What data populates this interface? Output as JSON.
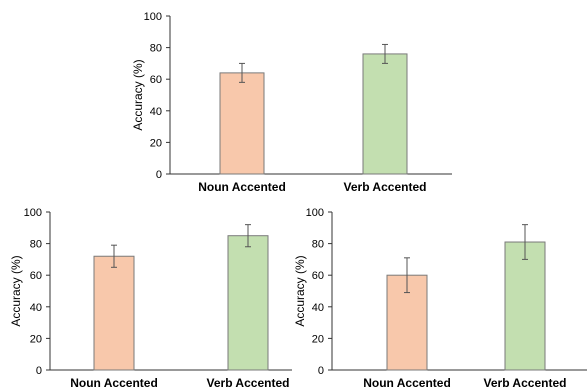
{
  "chart_data": [
    {
      "type": "bar",
      "categories": [
        "Noun Accented",
        "Verb Accented"
      ],
      "values": [
        64,
        76
      ],
      "errors": [
        6,
        6
      ],
      "ylabel": "Accuracy (%)",
      "ylim": [
        0,
        100
      ],
      "yticks": [
        "0",
        "20",
        "40",
        "60",
        "80",
        "100"
      ],
      "colors": [
        "#f8c8ab",
        "#c3dfb0"
      ],
      "grid": false
    },
    {
      "type": "bar",
      "categories": [
        "Noun Accented",
        "Verb Accented"
      ],
      "values": [
        72,
        85
      ],
      "errors": [
        7,
        7
      ],
      "ylabel": "Accuracy (%)",
      "ylim": [
        0,
        100
      ],
      "yticks": [
        "0",
        "20",
        "40",
        "60",
        "80",
        "100"
      ],
      "colors": [
        "#f8c8ab",
        "#c3dfb0"
      ],
      "grid": false
    },
    {
      "type": "bar",
      "categories": [
        "Noun Accented",
        "Verb Accented"
      ],
      "values": [
        60,
        81
      ],
      "errors": [
        11,
        11
      ],
      "ylabel": "Accuracy (%)",
      "ylim": [
        0,
        100
      ],
      "yticks": [
        "0",
        "20",
        "40",
        "60",
        "80",
        "100"
      ],
      "colors": [
        "#f8c8ab",
        "#c3dfb0"
      ],
      "grid": false
    }
  ]
}
